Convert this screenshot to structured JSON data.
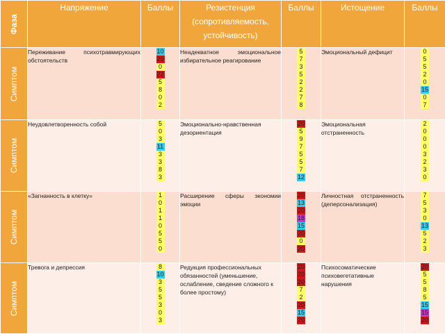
{
  "header": {
    "phase": "Фаза",
    "tension": "Напряжение",
    "scores1": "Баллы",
    "resistance": "Резистенция (сопротивляемость, устойчивость)",
    "scores2": "Баллы",
    "exhaustion": "Истощение",
    "scores3": "Баллы"
  },
  "colors": {
    "header": "#f0a63a",
    "row_odd": "#fbded0",
    "row_even": "#fdeee8",
    "y": "#ffff66",
    "c": "#33ccee",
    "r": "#cc1a1a",
    "m": "#cc33cc"
  },
  "rows": [
    {
      "label": "Симптом",
      "tension_text": "Переживание психотравмирующих обстоятельств",
      "tension_scores": [
        [
          "10",
          "c"
        ],
        [
          "20",
          "r"
        ],
        [
          "0",
          "y"
        ],
        [
          "22",
          "r"
        ],
        [
          "5",
          "y"
        ],
        [
          "8",
          "y"
        ],
        [
          "0",
          "y"
        ],
        [
          "2",
          "y"
        ]
      ],
      "resistance_text": "Неадекватное эмоциональное избирательное реагирование",
      "resistance_scores": [
        [
          "5",
          "y"
        ],
        [
          "7",
          "y"
        ],
        [
          "3",
          "y"
        ],
        [
          "5",
          "y"
        ],
        [
          "2",
          "y"
        ],
        [
          "2",
          "y"
        ],
        [
          "7",
          "y"
        ],
        [
          "8",
          "y"
        ]
      ],
      "exhaustion_text": "Эмоциональный дефицит",
      "exhaustion_scores": [
        [
          "0",
          "y"
        ],
        [
          "5",
          "y"
        ],
        [
          "5",
          "y"
        ],
        [
          "2",
          "y"
        ],
        [
          "0",
          "y"
        ],
        [
          "15",
          "c"
        ],
        [
          "0",
          "y"
        ],
        [
          "7",
          "y"
        ]
      ]
    },
    {
      "label": "Симптом",
      "tension_text": "Неудовлетворенность собой",
      "tension_scores": [
        [
          "5",
          "y"
        ],
        [
          "0",
          "y"
        ],
        [
          "3",
          "y"
        ],
        [
          "11",
          "c"
        ],
        [
          "3",
          "y"
        ],
        [
          "3",
          "y"
        ],
        [
          "8",
          "y"
        ],
        [
          "3",
          "y"
        ]
      ],
      "resistance_text": "Эмоционально-нравственная дезориентация",
      "resistance_scores": [
        [
          "20",
          "r"
        ],
        [
          "5",
          "y"
        ],
        [
          "9",
          "y"
        ],
        [
          "7",
          "y"
        ],
        [
          "5",
          "y"
        ],
        [
          "5",
          "y"
        ],
        [
          "7",
          "y"
        ],
        [
          "12",
          "c"
        ]
      ],
      "exhaustion_text": "Эмоциональная отстраненность",
      "exhaustion_scores": [
        [
          "2",
          "y"
        ],
        [
          "0",
          "y"
        ],
        [
          "0",
          "y"
        ],
        [
          "0",
          "y"
        ],
        [
          "3",
          "y"
        ],
        [
          "2",
          "y"
        ],
        [
          "3",
          "y"
        ],
        [
          "0",
          "y"
        ]
      ]
    },
    {
      "label": "Симптом",
      "tension_text": "«Загнанность в клетку»",
      "tension_scores": [
        [
          "1",
          "y"
        ],
        [
          "0",
          "y"
        ],
        [
          "1",
          "y"
        ],
        [
          "1",
          "y"
        ],
        [
          "0",
          "y"
        ],
        [
          "5",
          "y"
        ],
        [
          "5",
          "y"
        ],
        [
          "0",
          "y"
        ]
      ],
      "resistance_text": "Расширение сферы экономии эмоции",
      "resistance_scores": [
        [
          "20",
          "r"
        ],
        [
          "13",
          "c"
        ],
        [
          "20",
          "r"
        ],
        [
          "18",
          "m"
        ],
        [
          "15",
          "c"
        ],
        [
          "20",
          "r"
        ],
        [
          "0",
          "y"
        ],
        [
          "20",
          "r"
        ]
      ],
      "exhaustion_text": "Личностная отстраненность (деперсонализация)",
      "exhaustion_scores": [
        [
          "7",
          "y"
        ],
        [
          "5",
          "y"
        ],
        [
          "3",
          "y"
        ],
        [
          "0",
          "y"
        ],
        [
          "13",
          "c"
        ],
        [
          "5",
          "y"
        ],
        [
          "2",
          "y"
        ],
        [
          "3",
          "y"
        ]
      ]
    },
    {
      "label": "Симптом",
      "tension_text": "Тревога и депрессия",
      "tension_scores": [
        [
          "8",
          "y"
        ],
        [
          "10",
          "c"
        ],
        [
          "3",
          "y"
        ],
        [
          "5",
          "y"
        ],
        [
          "5",
          "y"
        ],
        [
          "3",
          "y"
        ],
        [
          "0",
          "y"
        ],
        [
          "3",
          "y"
        ]
      ],
      "resistance_text": "Редукция профессиональных обязанностей (уменьшение, ослабление, сведение сложного к более простому)",
      "resistance_scores": [
        [
          "20",
          "r"
        ],
        [
          "20",
          "r"
        ],
        [
          "20",
          "r"
        ],
        [
          "7",
          "y"
        ],
        [
          "2",
          "y"
        ],
        [
          "20",
          "r"
        ],
        [
          "15",
          "c"
        ],
        [
          "20",
          "r"
        ]
      ],
      "exhaustion_text": "Психосоматические психовегетативные нарушения",
      "exhaustion_scores": [
        [
          "20",
          "r"
        ],
        [
          "5",
          "y"
        ],
        [
          "5",
          "y"
        ],
        [
          "8",
          "y"
        ],
        [
          "5",
          "y"
        ],
        [
          "15",
          "c"
        ],
        [
          "15",
          "m"
        ],
        [
          "20",
          "r"
        ]
      ]
    }
  ]
}
